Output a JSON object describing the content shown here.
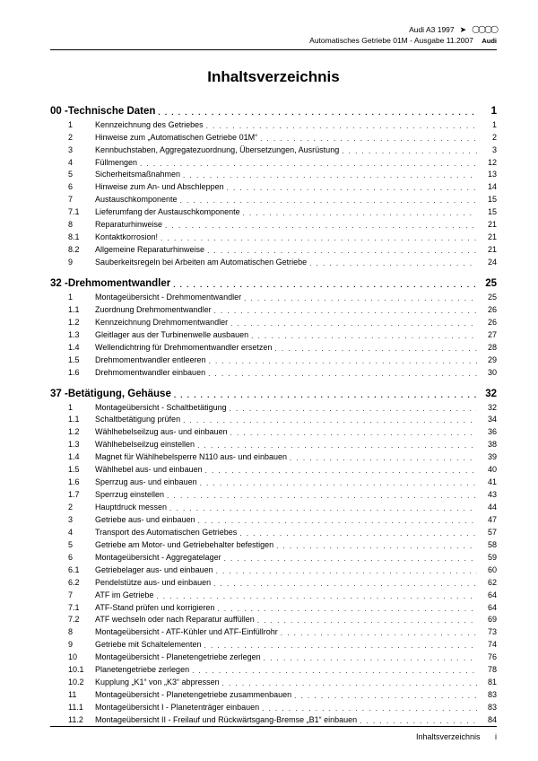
{
  "header": {
    "model": "Audi A3 1997",
    "subtitle": "Automatisches Getriebe 01M - Ausgabe 11.2007",
    "brand": "Audi",
    "logo_glyph": "◯◯◯◯"
  },
  "title": "Inhaltsverzeichnis",
  "footer": {
    "label": "Inhaltsverzeichnis",
    "pagenum": "i"
  },
  "sections": [
    {
      "num": "00",
      "title": "Technische Daten",
      "page": "1",
      "items": [
        {
          "n": "1",
          "t": "Kennzeichnung des Getriebes",
          "p": "1"
        },
        {
          "n": "2",
          "t": "Hinweise zum „Automatischen Getriebe 01M“",
          "p": "2"
        },
        {
          "n": "3",
          "t": "Kennbuchstaben, Aggregatezuordnung, Übersetzungen, Ausrüstung",
          "p": "3"
        },
        {
          "n": "4",
          "t": "Füllmengen",
          "p": "12"
        },
        {
          "n": "5",
          "t": "Sicherheitsmaßnahmen",
          "p": "13"
        },
        {
          "n": "6",
          "t": "Hinweise zum An- und Abschleppen",
          "p": "14"
        },
        {
          "n": "7",
          "t": "Austauschkomponente",
          "p": "15"
        },
        {
          "n": "7.1",
          "t": "Lieferumfang der Austauschkomponente",
          "p": "15"
        },
        {
          "n": "8",
          "t": "Reparaturhinweise",
          "p": "21"
        },
        {
          "n": "8.1",
          "t": "Kontaktkorrosion!",
          "p": "21"
        },
        {
          "n": "8.2",
          "t": "Allgemeine Reparaturhinweise",
          "p": "21"
        },
        {
          "n": "9",
          "t": "Sauberkeitsregeln bei Arbeiten am Automatischen Getriebe",
          "p": "24"
        }
      ]
    },
    {
      "num": "32",
      "title": "Drehmomentwandler",
      "page": "25",
      "items": [
        {
          "n": "1",
          "t": "Montageübersicht - Drehmomentwandler",
          "p": "25"
        },
        {
          "n": "1.1",
          "t": "Zuordnung Drehmomentwandler",
          "p": "26"
        },
        {
          "n": "1.2",
          "t": "Kennzeichnung Drehmomentwandler",
          "p": "26"
        },
        {
          "n": "1.3",
          "t": "Gleitlager aus der Turbinenwelle ausbauen",
          "p": "27"
        },
        {
          "n": "1.4",
          "t": "Wellendichtring für Drehmomentwandler ersetzen",
          "p": "28"
        },
        {
          "n": "1.5",
          "t": "Drehmomentwandler entleeren",
          "p": "29"
        },
        {
          "n": "1.6",
          "t": "Drehmomentwandler einbauen",
          "p": "30"
        }
      ]
    },
    {
      "num": "37",
      "title": "Betätigung, Gehäuse",
      "page": "32",
      "items": [
        {
          "n": "1",
          "t": "Montageübersicht - Schaltbetätigung",
          "p": "32"
        },
        {
          "n": "1.1",
          "t": "Schaltbetätigung prüfen",
          "p": "34"
        },
        {
          "n": "1.2",
          "t": "Wählhebelseilzug aus- und einbauen",
          "p": "36"
        },
        {
          "n": "1.3",
          "t": "Wählhebelseilzug einstellen",
          "p": "38"
        },
        {
          "n": "1.4",
          "t": "Magnet für Wählhebelsperre N110 aus- und einbauen",
          "p": "39"
        },
        {
          "n": "1.5",
          "t": "Wählhebel aus- und einbauen",
          "p": "40"
        },
        {
          "n": "1.6",
          "t": "Sperrzug aus- und einbauen",
          "p": "41"
        },
        {
          "n": "1.7",
          "t": "Sperrzug einstellen",
          "p": "43"
        },
        {
          "n": "2",
          "t": "Hauptdruck messen",
          "p": "44"
        },
        {
          "n": "3",
          "t": "Getriebe aus- und einbauen",
          "p": "47"
        },
        {
          "n": "4",
          "t": "Transport des Automatischen Getriebes",
          "p": "57"
        },
        {
          "n": "5",
          "t": "Getriebe am Motor- und Getriebehalter befestigen",
          "p": "58"
        },
        {
          "n": "6",
          "t": "Montageübersicht - Aggregatelager",
          "p": "59"
        },
        {
          "n": "6.1",
          "t": "Getriebelager aus- und einbauen",
          "p": "60"
        },
        {
          "n": "6.2",
          "t": "Pendelstütze aus- und einbauen",
          "p": "62"
        },
        {
          "n": "7",
          "t": "ATF im Getriebe",
          "p": "64"
        },
        {
          "n": "7.1",
          "t": "ATF-Stand prüfen und korrigieren",
          "p": "64"
        },
        {
          "n": "7.2",
          "t": "ATF wechseln oder nach Reparatur auffüllen",
          "p": "69"
        },
        {
          "n": "8",
          "t": "Montageübersicht - ATF-Kühler und ATF-Einfüllrohr",
          "p": "73"
        },
        {
          "n": "9",
          "t": "Getriebe mit Schaltelementen",
          "p": "74"
        },
        {
          "n": "10",
          "t": "Montageübersicht - Planetengetriebe zerlegen",
          "p": "76"
        },
        {
          "n": "10.1",
          "t": "Planetengetriebe zerlegen",
          "p": "78"
        },
        {
          "n": "10.2",
          "t": "Kupplung „K1“ von „K3“ abpressen",
          "p": "81"
        },
        {
          "n": "11",
          "t": "Montageübersicht - Planetengetriebe zusammenbauen",
          "p": "83"
        },
        {
          "n": "11.1",
          "t": "Montageübersicht I - Planetenträger einbauen",
          "p": "83"
        },
        {
          "n": "11.2",
          "t": "Montageübersicht II - Freilauf und Rückwärtsgang-Bremse „B1“ einbauen",
          "p": "84"
        }
      ]
    }
  ]
}
